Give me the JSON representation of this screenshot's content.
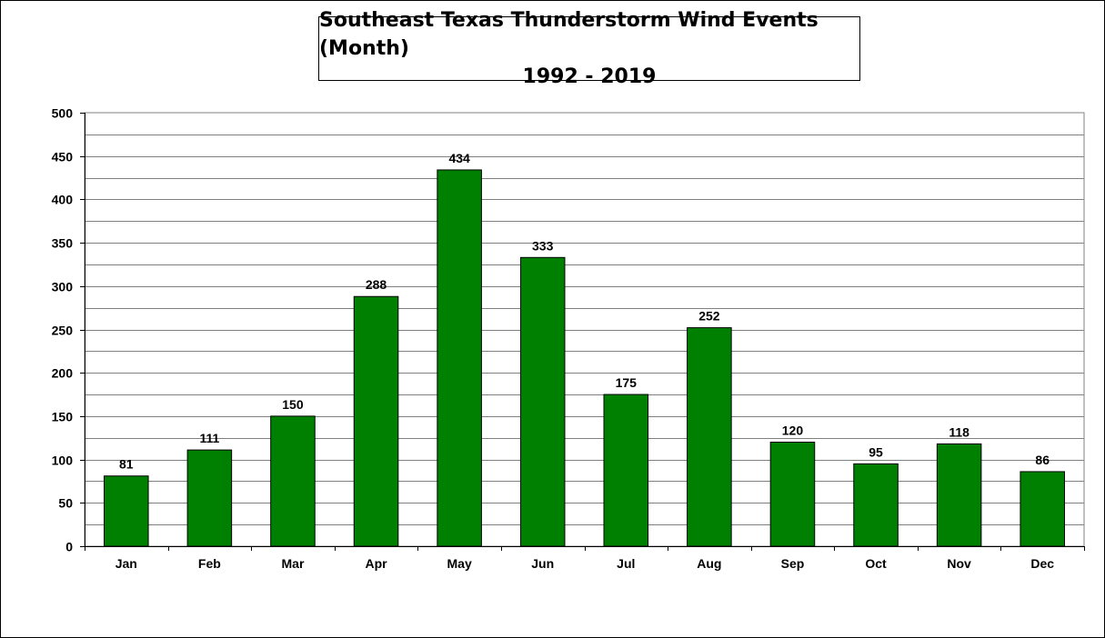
{
  "chart_data": {
    "type": "bar",
    "title": "Southeast Texas Thunderstorm Wind Events (Month)",
    "subtitle": "1992 - 2019",
    "xlabel": "",
    "ylabel": "",
    "categories": [
      "Jan",
      "Feb",
      "Mar",
      "Apr",
      "May",
      "Jun",
      "Jul",
      "Aug",
      "Sep",
      "Oct",
      "Nov",
      "Dec"
    ],
    "values": [
      81,
      111,
      150,
      288,
      434,
      333,
      175,
      252,
      120,
      95,
      118,
      86
    ],
    "ylim": [
      0,
      500
    ],
    "yticks": [
      0,
      50,
      100,
      150,
      200,
      250,
      300,
      350,
      400,
      450,
      500
    ],
    "grid": true,
    "legend": "none",
    "bar_color": "#008000",
    "plot_background": "#ffffff"
  }
}
